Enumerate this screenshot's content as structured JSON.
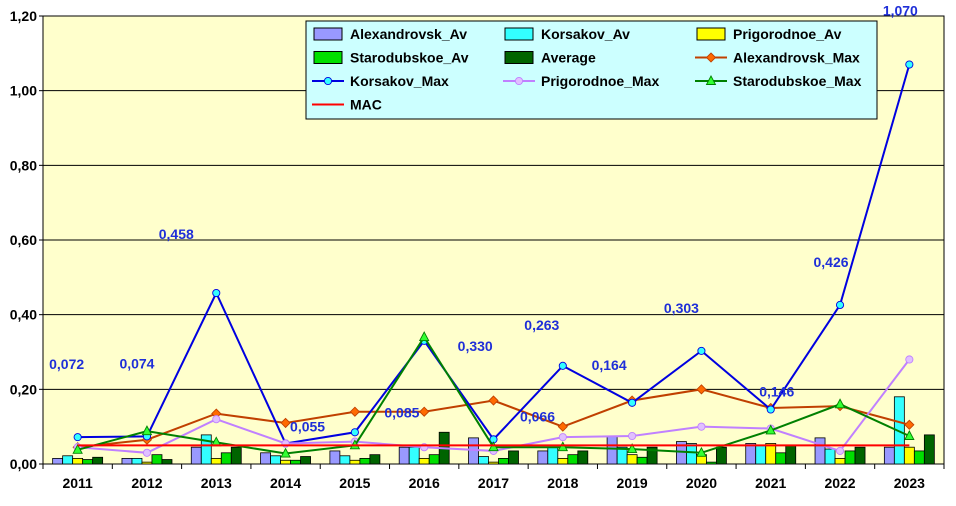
{
  "chart_data": {
    "type": "bar",
    "categories": [
      "2011",
      "2012",
      "2013",
      "2014",
      "2015",
      "2016",
      "2017",
      "2018",
      "2019",
      "2020",
      "2021",
      "2022",
      "2023"
    ],
    "ylim": [
      0,
      1.2
    ],
    "yticks": [
      "0,00",
      "0,20",
      "0,40",
      "0,60",
      "0,80",
      "1,00",
      "1,20"
    ],
    "grid": true,
    "legend_position": "top-right",
    "bar_series": [
      {
        "name": "Alexandrovsk_Av",
        "color": "#9999ff",
        "values": [
          0.015,
          0.015,
          0.045,
          0.03,
          0.035,
          0.045,
          0.07,
          0.035,
          0.075,
          0.06,
          0.055,
          0.07,
          0.045
        ]
      },
      {
        "name": "Korsakov_Av",
        "color": "#33ffff",
        "values": [
          0.022,
          0.015,
          0.078,
          0.022,
          0.022,
          0.045,
          0.02,
          0.045,
          0.045,
          0.055,
          0.05,
          0.04,
          0.18
        ]
      },
      {
        "name": "Prigorodnoe_Av",
        "color": "#ffff00",
        "values": [
          0.015,
          0.005,
          0.015,
          0.01,
          0.01,
          0.015,
          0.005,
          0.015,
          0.025,
          0.025,
          0.055,
          0.015,
          0.045
        ]
      },
      {
        "name": "Starodubskoe_Av",
        "color": "#00e000",
        "values": [
          0.012,
          0.025,
          0.03,
          0.01,
          0.015,
          0.025,
          0.015,
          0.025,
          0.018,
          0.005,
          0.03,
          0.035,
          0.035
        ]
      },
      {
        "name": "Average",
        "color": "#006400",
        "values": [
          0.018,
          0.012,
          0.045,
          0.02,
          0.025,
          0.085,
          0.035,
          0.035,
          0.045,
          0.045,
          0.05,
          0.045,
          0.078
        ]
      }
    ],
    "line_series": [
      {
        "name": "Alexandrovsk_Max",
        "color": "#c04000",
        "marker": "diamond",
        "marker_color": "#ff6a00",
        "values": [
          0.045,
          0.065,
          0.135,
          0.11,
          0.14,
          0.14,
          0.17,
          0.1,
          0.17,
          0.2,
          0.15,
          0.155,
          0.105
        ]
      },
      {
        "name": "Korsakov_Max",
        "color": "#0000e0",
        "marker": "circle",
        "marker_color": "#33ffff",
        "values": [
          0.072,
          0.074,
          0.458,
          0.055,
          0.085,
          0.33,
          0.066,
          0.263,
          0.164,
          0.303,
          0.146,
          0.426,
          1.07
        ]
      },
      {
        "name": "Prigorodnoe_Max",
        "color": "#c080ff",
        "marker": "circle",
        "marker_color": "#e0c0ff",
        "values": [
          0.045,
          0.03,
          0.12,
          0.055,
          0.06,
          0.045,
          0.035,
          0.072,
          0.075,
          0.1,
          0.095,
          0.035,
          0.28
        ]
      },
      {
        "name": "Starodubskoe_Max",
        "color": "#008000",
        "marker": "triangle",
        "marker_color": "#33ff33",
        "values": [
          0.038,
          0.088,
          0.058,
          0.028,
          0.05,
          0.34,
          0.045,
          0.045,
          0.04,
          0.03,
          0.09,
          0.16,
          0.075
        ]
      },
      {
        "name": "MAC",
        "color": "#ff0000",
        "marker": "none",
        "values": [
          0.05,
          0.05,
          0.05,
          0.05,
          0.05,
          0.05,
          0.05,
          0.05,
          0.05,
          0.05,
          0.05,
          0.05,
          0.05
        ]
      }
    ],
    "data_labels": [
      "0,072",
      "0,074",
      "0,458",
      "0,055",
      "0,085",
      "0,330",
      "0,066",
      "0,263",
      "0,164",
      "0,303",
      "0,146",
      "0,426",
      "1,070"
    ],
    "legend": [
      {
        "name": "Alexandrovsk_Av",
        "kind": "bar",
        "color": "#9999ff"
      },
      {
        "name": "Korsakov_Av",
        "kind": "bar",
        "color": "#33ffff"
      },
      {
        "name": "Prigorodnoe_Av",
        "kind": "bar",
        "color": "#ffff00"
      },
      {
        "name": "Starodubskoe_Av",
        "kind": "bar",
        "color": "#00e000"
      },
      {
        "name": "Average",
        "kind": "bar",
        "color": "#006400"
      },
      {
        "name": "Alexandrovsk_Max",
        "kind": "line",
        "color": "#c04000",
        "marker": "diamond",
        "marker_color": "#ff6a00"
      },
      {
        "name": "Korsakov_Max",
        "kind": "line",
        "color": "#0000e0",
        "marker": "circle",
        "marker_color": "#33ffff"
      },
      {
        "name": "Prigorodnoe_Max",
        "kind": "line",
        "color": "#c080ff",
        "marker": "circle",
        "marker_color": "#e0c0ff"
      },
      {
        "name": "Starodubskoe_Max",
        "kind": "line",
        "color": "#008000",
        "marker": "triangle",
        "marker_color": "#33ff33"
      },
      {
        "name": "MAC",
        "kind": "line",
        "color": "#ff0000",
        "marker": "none"
      }
    ],
    "plot_bg_color": "#ffffcc",
    "legend_bg_color": "#ccffff",
    "label_color": "#1f2fd8"
  }
}
